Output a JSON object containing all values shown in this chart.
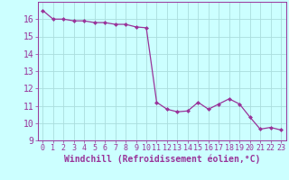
{
  "x": [
    0,
    1,
    2,
    3,
    4,
    5,
    6,
    7,
    8,
    9,
    10,
    11,
    12,
    13,
    14,
    15,
    16,
    17,
    18,
    19,
    20,
    21,
    22,
    23
  ],
  "y": [
    16.5,
    16.0,
    16.0,
    15.9,
    15.9,
    15.8,
    15.8,
    15.7,
    15.7,
    15.55,
    15.5,
    11.2,
    10.8,
    10.65,
    10.7,
    11.2,
    10.8,
    11.1,
    11.4,
    11.1,
    10.35,
    9.65,
    9.75,
    9.6
  ],
  "line_color": "#993399",
  "marker": "D",
  "marker_size": 2.5,
  "bg_color": "#ccffff",
  "grid_color": "#aadddd",
  "xlabel": "Windchill (Refroidissement éolien,°C)",
  "ylim": [
    9,
    17
  ],
  "xlim": [
    -0.5,
    23.5
  ],
  "yticks": [
    9,
    10,
    11,
    12,
    13,
    14,
    15,
    16
  ],
  "xticks": [
    0,
    1,
    2,
    3,
    4,
    5,
    6,
    7,
    8,
    9,
    10,
    11,
    12,
    13,
    14,
    15,
    16,
    17,
    18,
    19,
    20,
    21,
    22,
    23
  ],
  "tick_color": "#993399",
  "xlabel_fontsize": 7,
  "xtick_fontsize": 6,
  "ytick_fontsize": 7
}
